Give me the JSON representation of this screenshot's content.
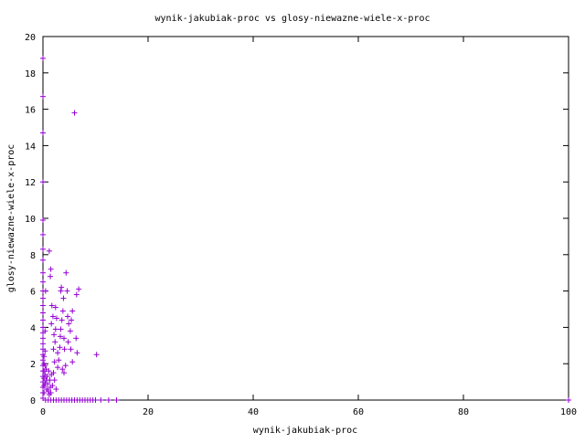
{
  "chart_data": {
    "type": "scatter",
    "title": "wynik-jakubiak-proc vs glosy-niewazne-wiele-x-proc",
    "xlabel": "wynik-jakubiak-proc",
    "ylabel": "glosy-niewazne-wiele-x-proc",
    "xlim": [
      0,
      100
    ],
    "ylim": [
      0,
      20
    ],
    "x_ticks": [
      "0",
      "20",
      "40",
      "60",
      "80",
      "100"
    ],
    "y_ticks": [
      "0",
      "2",
      "4",
      "6",
      "8",
      "10",
      "12",
      "14",
      "16",
      "18",
      "20"
    ],
    "grid": false,
    "legend": "none",
    "marker": "+",
    "colors": {
      "points": "#9400d3",
      "axes": "#000000",
      "background": "#ffffff"
    },
    "series": [
      {
        "values": [
          [
            0,
            18.8
          ],
          [
            0,
            16.7
          ],
          [
            0,
            14.7
          ],
          [
            0,
            12.0
          ],
          [
            0,
            9.9
          ],
          [
            0,
            9.1
          ],
          [
            0,
            8.3
          ],
          [
            0,
            7.7
          ],
          [
            0,
            7.0
          ],
          [
            0,
            6.5
          ],
          [
            0,
            6.0
          ],
          [
            0,
            5.6
          ],
          [
            0,
            5.2
          ],
          [
            0,
            4.8
          ],
          [
            0,
            4.4
          ],
          [
            0,
            4.0
          ],
          [
            0,
            3.7
          ],
          [
            0,
            3.4
          ],
          [
            0,
            3.1
          ],
          [
            0,
            2.8
          ],
          [
            0,
            2.5
          ],
          [
            0,
            2.2
          ],
          [
            0,
            1.9
          ],
          [
            0,
            1.6
          ],
          [
            0,
            1.3
          ],
          [
            0,
            1.0
          ],
          [
            0,
            0.7
          ],
          [
            0,
            0.4
          ],
          [
            0,
            0.1
          ],
          [
            0.2,
            2.4
          ],
          [
            0.2,
            2.0
          ],
          [
            0.2,
            1.6
          ],
          [
            0.2,
            1.2
          ],
          [
            0.2,
            0.8
          ],
          [
            0.2,
            0.4
          ],
          [
            0.4,
            3.8
          ],
          [
            0.4,
            2.7
          ],
          [
            0.4,
            1.9
          ],
          [
            0.4,
            1.4
          ],
          [
            0.4,
            0.9
          ],
          [
            0.5,
            6.0
          ],
          [
            0.6,
            1.7
          ],
          [
            0.6,
            1.1
          ],
          [
            0.7,
            0.6
          ],
          [
            0.8,
            1.3
          ],
          [
            0.9,
            0.9
          ],
          [
            1.0,
            0.5
          ],
          [
            1.1,
            1.6
          ],
          [
            1.2,
            0.3
          ],
          [
            1.3,
            1.1
          ],
          [
            1.4,
            0.7
          ],
          [
            1.5,
            0.4
          ],
          [
            1.6,
            1.4
          ],
          [
            1.8,
            0.8
          ],
          [
            2.0,
            1.5
          ],
          [
            2.2,
            1.1
          ],
          [
            2.5,
            0.6
          ],
          [
            2.8,
            1.8
          ],
          [
            1.2,
            8.2
          ],
          [
            1.5,
            7.2
          ],
          [
            1.4,
            6.8
          ],
          [
            1.7,
            5.2
          ],
          [
            1.9,
            4.6
          ],
          [
            1.6,
            4.2
          ],
          [
            2.4,
            5.1
          ],
          [
            2.6,
            4.5
          ],
          [
            2.4,
            3.9
          ],
          [
            2.1,
            3.6
          ],
          [
            2.3,
            3.2
          ],
          [
            2.0,
            2.8
          ],
          [
            2.2,
            2.1
          ],
          [
            2.8,
            2.6
          ],
          [
            3.0,
            2.2
          ],
          [
            3.2,
            2.9
          ],
          [
            3.3,
            3.5
          ],
          [
            3.4,
            3.9
          ],
          [
            3.6,
            4.4
          ],
          [
            3.4,
            6.0
          ],
          [
            3.5,
            6.2
          ],
          [
            3.8,
            4.9
          ],
          [
            3.9,
            5.6
          ],
          [
            4.0,
            3.4
          ],
          [
            4.1,
            2.8
          ],
          [
            4.3,
            1.9
          ],
          [
            3.7,
            1.7
          ],
          [
            4.0,
            1.5
          ],
          [
            4.4,
            7.0
          ],
          [
            4.6,
            6.0
          ],
          [
            4.7,
            4.6
          ],
          [
            4.9,
            4.2
          ],
          [
            4.8,
            3.2
          ],
          [
            5.2,
            3.8
          ],
          [
            5.4,
            4.4
          ],
          [
            5.6,
            4.9
          ],
          [
            5.3,
            2.8
          ],
          [
            5.6,
            2.1
          ],
          [
            6.4,
            5.8
          ],
          [
            6.8,
            6.1
          ],
          [
            6.3,
            3.4
          ],
          [
            6.5,
            2.6
          ],
          [
            6.0,
            15.8
          ],
          [
            10.2,
            2.5
          ],
          [
            0.5,
            0
          ],
          [
            1.0,
            0
          ],
          [
            1.5,
            0
          ],
          [
            2.0,
            0
          ],
          [
            2.5,
            0
          ],
          [
            3.0,
            0
          ],
          [
            3.5,
            0
          ],
          [
            4.0,
            0
          ],
          [
            4.5,
            0
          ],
          [
            5.0,
            0
          ],
          [
            5.5,
            0
          ],
          [
            6.0,
            0
          ],
          [
            6.5,
            0
          ],
          [
            7.0,
            0
          ],
          [
            7.5,
            0
          ],
          [
            8.0,
            0
          ],
          [
            8.5,
            0
          ],
          [
            9.0,
            0
          ],
          [
            9.5,
            0
          ],
          [
            10.0,
            0
          ],
          [
            11.0,
            0
          ],
          [
            12.5,
            0
          ],
          [
            14.0,
            0
          ],
          [
            100,
            0
          ]
        ]
      }
    ]
  }
}
